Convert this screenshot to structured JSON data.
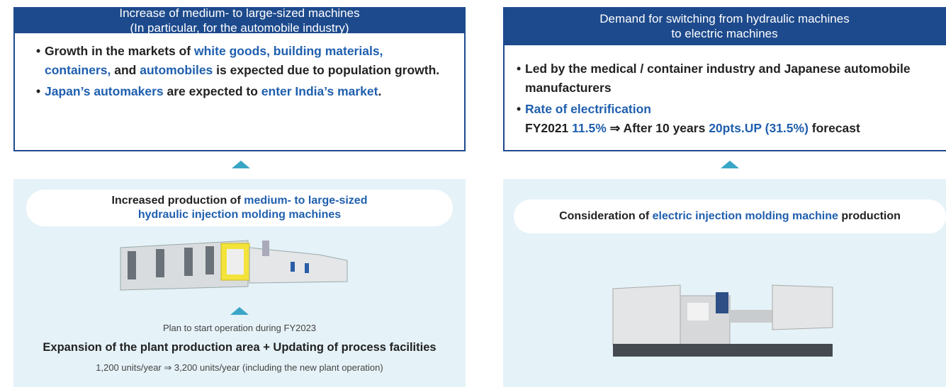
{
  "left": {
    "header": [
      "Increase of medium- to large-sized machines",
      "(In particular, for the automobile industry)"
    ],
    "bullets": [
      [
        [
          {
            "text": "Growth in the markets of "
          },
          {
            "text": "white goods, building materials, containers,",
            "color": "#1f5fae"
          },
          {
            "text": " and "
          },
          {
            "text": "automobiles",
            "color": "#1f5fae"
          },
          {
            "text": " is expected due to population growth."
          }
        ]
      ],
      [
        [
          {
            "text": "Japan’s automakers",
            "color": "#1f5fae"
          },
          {
            "text": " are expected to "
          },
          {
            "text": "enter India’s market",
            "color": "#1f5fae"
          },
          {
            "text": "."
          }
        ]
      ]
    ],
    "production": {
      "title": [
        {
          "text": "Increased production of "
        },
        {
          "text": "medium- to large-sized hydraulic injection molding machines",
          "color": "#1f5fae"
        }
      ],
      "note": "Plan to start operation during FY2023",
      "expansion": "Expansion of the plant production area + Updating of process facilities",
      "capacity": "1,200 units/year ⇒ 3,200 units/year (including the new plant operation)"
    }
  },
  "right": {
    "header": [
      "Demand for switching from hydraulic machines",
      "to electric machines"
    ],
    "bullets": [
      [
        [
          {
            "text": "Led by the medical / container industry and Japanese automobile manufacturers"
          }
        ]
      ],
      [
        [
          {
            "text": "Rate of electrification",
            "color": "#1f5fae"
          }
        ],
        [
          {
            "text": "FY2021 "
          },
          {
            "text": "11.5%",
            "color": "#1f5fae"
          },
          {
            "text": " ⇒ After 10 years "
          },
          {
            "text": "20pts.UP (31.5%)",
            "color": "#1f5fae"
          },
          {
            "text": " forecast"
          }
        ]
      ]
    ],
    "production": {
      "title": [
        {
          "text": "Consideration of "
        },
        {
          "text": "electric injection molding machine",
          "color": "#1f5fae"
        },
        {
          "text": " production"
        }
      ]
    }
  }
}
